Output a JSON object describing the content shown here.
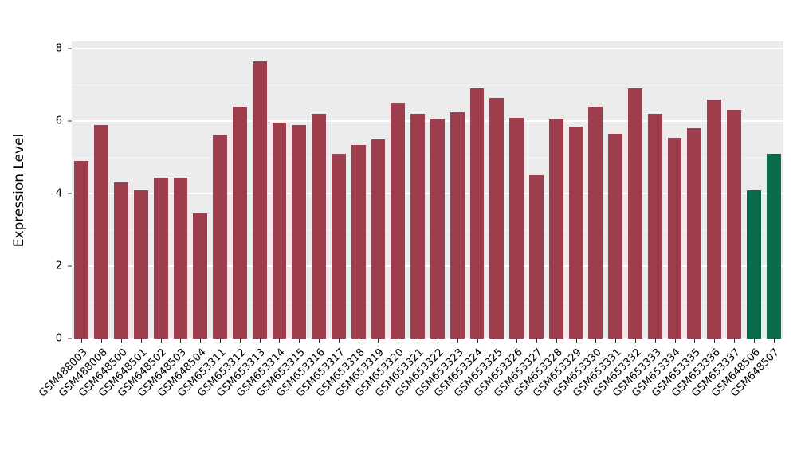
{
  "chart_data": {
    "type": "bar",
    "title": "",
    "xlabel": "",
    "ylabel": "Expression Level",
    "ylim": [
      0,
      8.2
    ],
    "yticks": [
      0,
      2,
      4,
      6,
      8
    ],
    "yticks_minor": [
      1,
      3,
      5,
      7
    ],
    "grid": "on",
    "legend": "none",
    "panel_background": "#ebebeb",
    "categories": [
      "GSM488003",
      "GSM488008",
      "GSM648500",
      "GSM648501",
      "GSM648502",
      "GSM648503",
      "GSM648504",
      "GSM653311",
      "GSM653312",
      "GSM653313",
      "GSM653314",
      "GSM653315",
      "GSM653316",
      "GSM653317",
      "GSM653318",
      "GSM653319",
      "GSM653320",
      "GSM653321",
      "GSM653322",
      "GSM653323",
      "GSM653324",
      "GSM653325",
      "GSM653326",
      "GSM653327",
      "GSM653328",
      "GSM653329",
      "GSM653330",
      "GSM653331",
      "GSM653332",
      "GSM653333",
      "GSM653334",
      "GSM653335",
      "GSM653336",
      "GSM653337",
      "GSM648506",
      "GSM648507"
    ],
    "values": [
      4.9,
      5.9,
      4.3,
      4.1,
      4.45,
      4.45,
      3.45,
      5.6,
      6.4,
      7.65,
      5.95,
      5.9,
      6.2,
      5.1,
      5.35,
      5.5,
      6.5,
      6.2,
      6.05,
      6.25,
      6.9,
      6.65,
      6.1,
      4.5,
      6.05,
      5.85,
      6.4,
      5.65,
      6.9,
      6.2,
      5.55,
      5.8,
      6.6,
      6.3,
      4.1,
      5.1
    ],
    "highlight_indices": [
      34,
      35
    ],
    "colors": {
      "default": "#9e3d4c",
      "highlight": "#0c6b4a"
    }
  }
}
